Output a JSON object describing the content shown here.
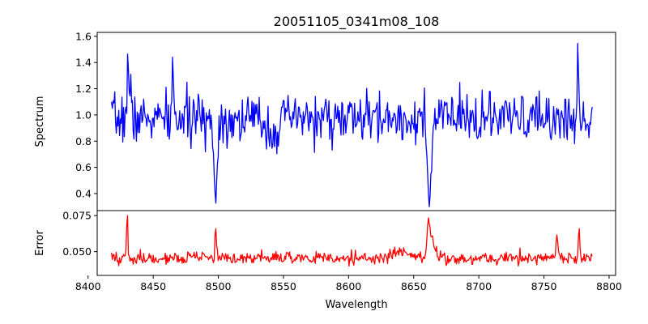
{
  "chart_data": {
    "type": "line",
    "title": "20051105_0341m08_108",
    "xlabel": "Wavelength",
    "xlim": [
      8407,
      8805
    ],
    "xticks": [
      8400,
      8450,
      8500,
      8550,
      8600,
      8650,
      8700,
      8750,
      8800
    ],
    "xtick_labels": [
      "8400",
      "8450",
      "8500",
      "8550",
      "8600",
      "8650",
      "8700",
      "8750",
      "8800"
    ],
    "grid": false,
    "legend": "none",
    "panels": [
      {
        "name": "spectrum",
        "ylabel": "Spectrum",
        "ylim": [
          0.27,
          1.63
        ],
        "yticks": [
          0.4,
          0.6,
          0.8,
          1.0,
          1.2,
          1.4,
          1.6
        ],
        "ytick_labels": [
          "0.4",
          "0.6",
          "0.8",
          "1.0",
          "1.2",
          "1.4",
          "1.6"
        ],
        "color": "#0000ff",
        "series": {
          "x_start": 8418,
          "x_end": 8787,
          "n_points": 600,
          "baseline": 0.97,
          "noise": 0.09,
          "seed": 7,
          "features": [
            {
              "x": 8430.5,
              "amplitude": 0.58,
              "width": 0.5
            },
            {
              "x": 8432.5,
              "amplitude": 0.24,
              "width": 0.6
            },
            {
              "x": 8465.0,
              "amplitude": 0.45,
              "width": 0.5
            },
            {
              "x": 8498.0,
              "amplitude": -0.58,
              "width": 1.3
            },
            {
              "x": 8542.0,
              "amplitude": -0.1,
              "width": 4.0
            },
            {
              "x": 8662.0,
              "amplitude": -0.65,
              "width": 1.6
            },
            {
              "x": 8674.0,
              "amplitude": 0.2,
              "width": 0.5
            },
            {
              "x": 8776.0,
              "amplitude": 0.45,
              "width": 0.5
            }
          ]
        }
      },
      {
        "name": "error",
        "ylabel": "Error",
        "ylim": [
          0.0335,
          0.0785
        ],
        "yticks": [
          0.05,
          0.075
        ],
        "ytick_labels": [
          "0.050",
          "0.075"
        ],
        "color": "#ff0000",
        "series": {
          "x_start": 8418,
          "x_end": 8787,
          "n_points": 600,
          "baseline": 0.0455,
          "noise": 0.0022,
          "seed": 19,
          "features": [
            {
              "x": 8430.0,
              "amplitude": 0.031,
              "width": 0.5
            },
            {
              "x": 8498.0,
              "amplitude": 0.025,
              "width": 0.5
            },
            {
              "x": 8640.0,
              "amplitude": 0.004,
              "width": 6.0
            },
            {
              "x": 8661.5,
              "amplitude": 0.028,
              "width": 1.2
            },
            {
              "x": 8665.0,
              "amplitude": 0.012,
              "width": 1.5
            },
            {
              "x": 8760.0,
              "amplitude": 0.012,
              "width": 1.0
            },
            {
              "x": 8777.0,
              "amplitude": 0.02,
              "width": 0.6
            }
          ]
        }
      }
    ]
  }
}
